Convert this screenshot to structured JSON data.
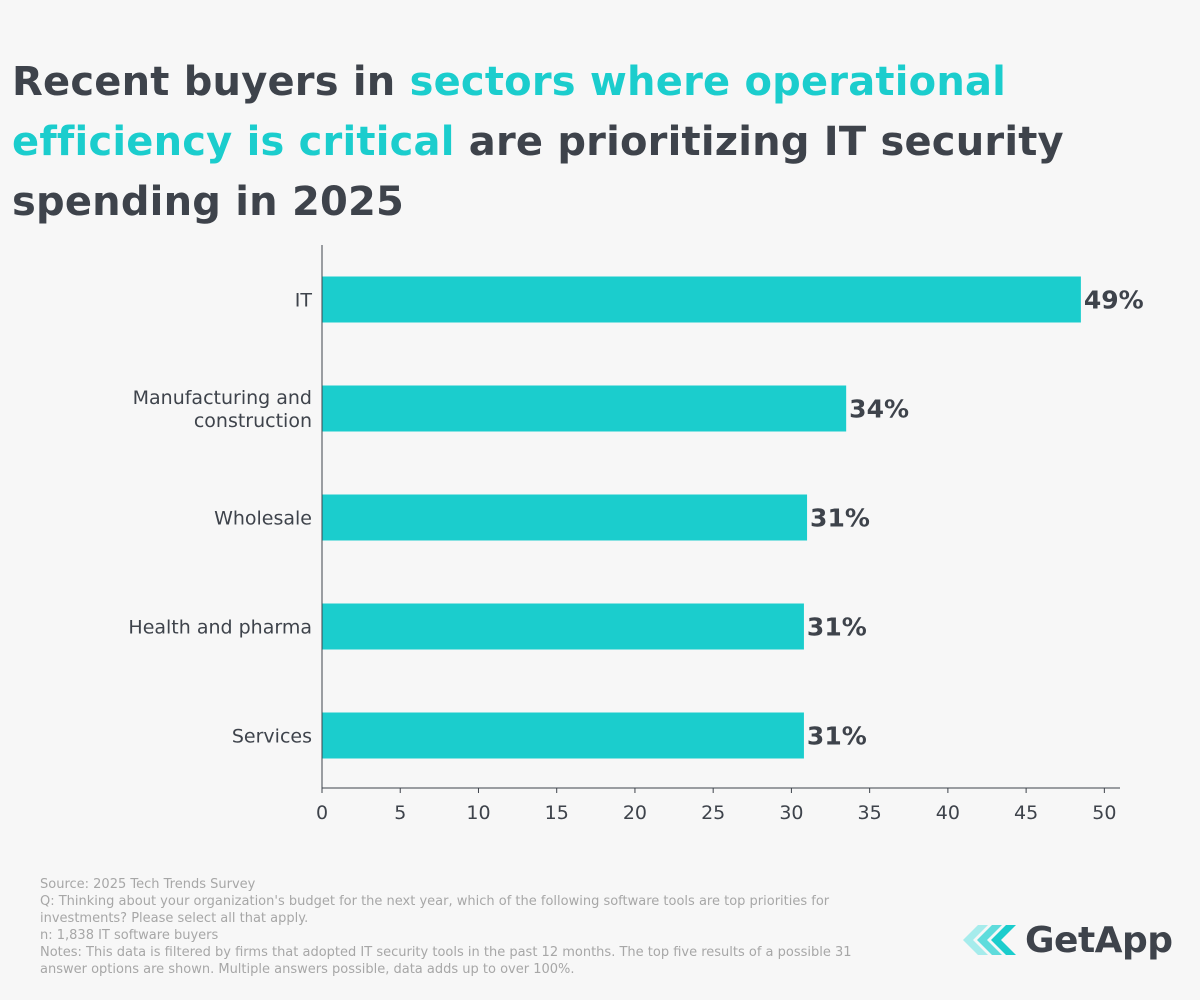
{
  "title": {
    "part1": "Recent buyers in ",
    "highlight": "sectors where operational efficiency is critical",
    "part2": " are prioritizing IT security spending in 2025"
  },
  "colors": {
    "bar": "#1bcdcd",
    "text": "#3e434b",
    "highlight": "#1bcdcd",
    "notes": "#a7a7a7"
  },
  "chart_data": {
    "type": "bar",
    "orientation": "horizontal",
    "categories": [
      [
        "IT"
      ],
      [
        "Manufacturing and",
        "construction"
      ],
      [
        "Wholesale"
      ],
      [
        "Health and pharma"
      ],
      [
        "Services"
      ]
    ],
    "values": [
      48.5,
      33.5,
      31,
      30.8,
      30.8
    ],
    "value_labels": [
      "49%",
      "34%",
      "31%",
      "31%",
      "31%"
    ],
    "xlim": [
      0,
      51
    ],
    "xticks": [
      0,
      5,
      10,
      15,
      20,
      25,
      30,
      35,
      40,
      45,
      50
    ],
    "xlabel": "",
    "ylabel": "",
    "grid": false
  },
  "footer": {
    "source": "Source: 2025 Tech Trends Survey",
    "question": "Q: Thinking about your organization's budget for the next year, which of the following software tools are top priorities for investments? Please select all that apply.",
    "n": "n: 1,838 IT software buyers",
    "notes": "Notes: This data is filtered by firms that adopted IT security tools in the past 12 months. The top five results of a possible 31 answer options are shown. Multiple answers possible, data adds up to over 100%."
  },
  "logo": {
    "text": "GetApp",
    "icon": "getapp-chevrons-icon"
  }
}
